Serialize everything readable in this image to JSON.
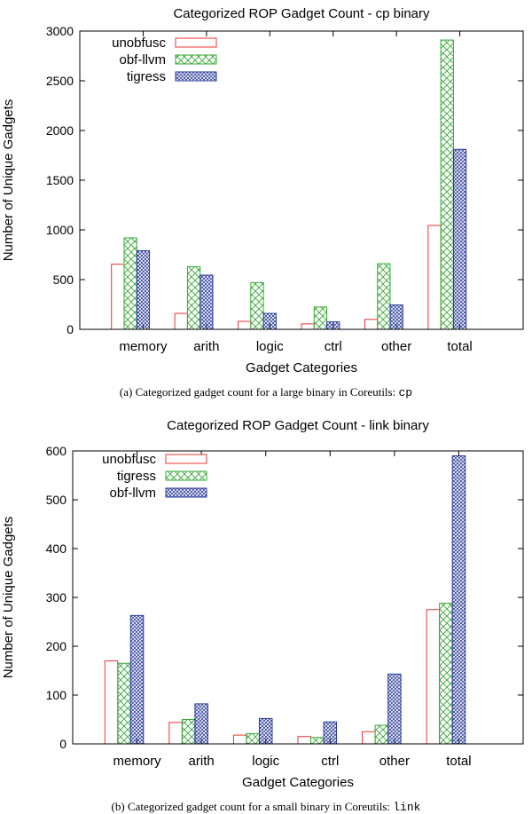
{
  "colors": {
    "unobfusc": "#ee3333",
    "obf_llvm": "#33aa33",
    "tigress": "#2a3a9a",
    "axis": "#000000"
  },
  "captions": {
    "a_prefix": "(a) Categorized gadget count for a large binary in Coreutils: ",
    "a_code": "cp",
    "b_prefix": "(b) Categorized gadget count for a small binary in Coreutils: ",
    "b_code": "link"
  },
  "chart_data": [
    {
      "type": "bar",
      "title": "Categorized ROP Gadget Count - cp binary",
      "xlabel": "Gadget Categories",
      "ylabel": "Number of Unique Gadgets",
      "ylim": [
        0,
        3000
      ],
      "yticks": [
        0,
        500,
        1000,
        1500,
        2000,
        2500,
        3000
      ],
      "legend_position": "top-left",
      "categories": [
        "memory",
        "arith",
        "logic",
        "ctrl",
        "other",
        "total"
      ],
      "series": [
        {
          "name": "unobfusc",
          "key": "unobfusc",
          "values": [
            655,
            160,
            80,
            55,
            100,
            1045
          ]
        },
        {
          "name": "obf-llvm",
          "key": "obf_llvm",
          "values": [
            920,
            630,
            470,
            225,
            660,
            2910
          ]
        },
        {
          "name": "tigress",
          "key": "tigress",
          "values": [
            790,
            545,
            160,
            75,
            245,
            1810
          ]
        }
      ]
    },
    {
      "type": "bar",
      "title": "Categorized ROP Gadget Count - link binary",
      "xlabel": "Gadget Categories",
      "ylabel": "Number of Unique Gadgets",
      "ylim": [
        0,
        600
      ],
      "yticks": [
        0,
        100,
        200,
        300,
        400,
        500,
        600
      ],
      "legend_position": "top-left",
      "categories": [
        "memory",
        "arith",
        "logic",
        "ctrl",
        "other",
        "total"
      ],
      "series": [
        {
          "name": "unobfusc",
          "key": "unobfusc",
          "values": [
            170,
            44,
            18,
            15,
            25,
            275
          ]
        },
        {
          "name": "tigress",
          "key": "obf_llvm",
          "values": [
            165,
            50,
            21,
            13,
            38,
            288
          ]
        },
        {
          "name": "obf-llvm",
          "key": "tigress",
          "values": [
            263,
            82,
            52,
            45,
            143,
            590
          ]
        }
      ]
    }
  ]
}
